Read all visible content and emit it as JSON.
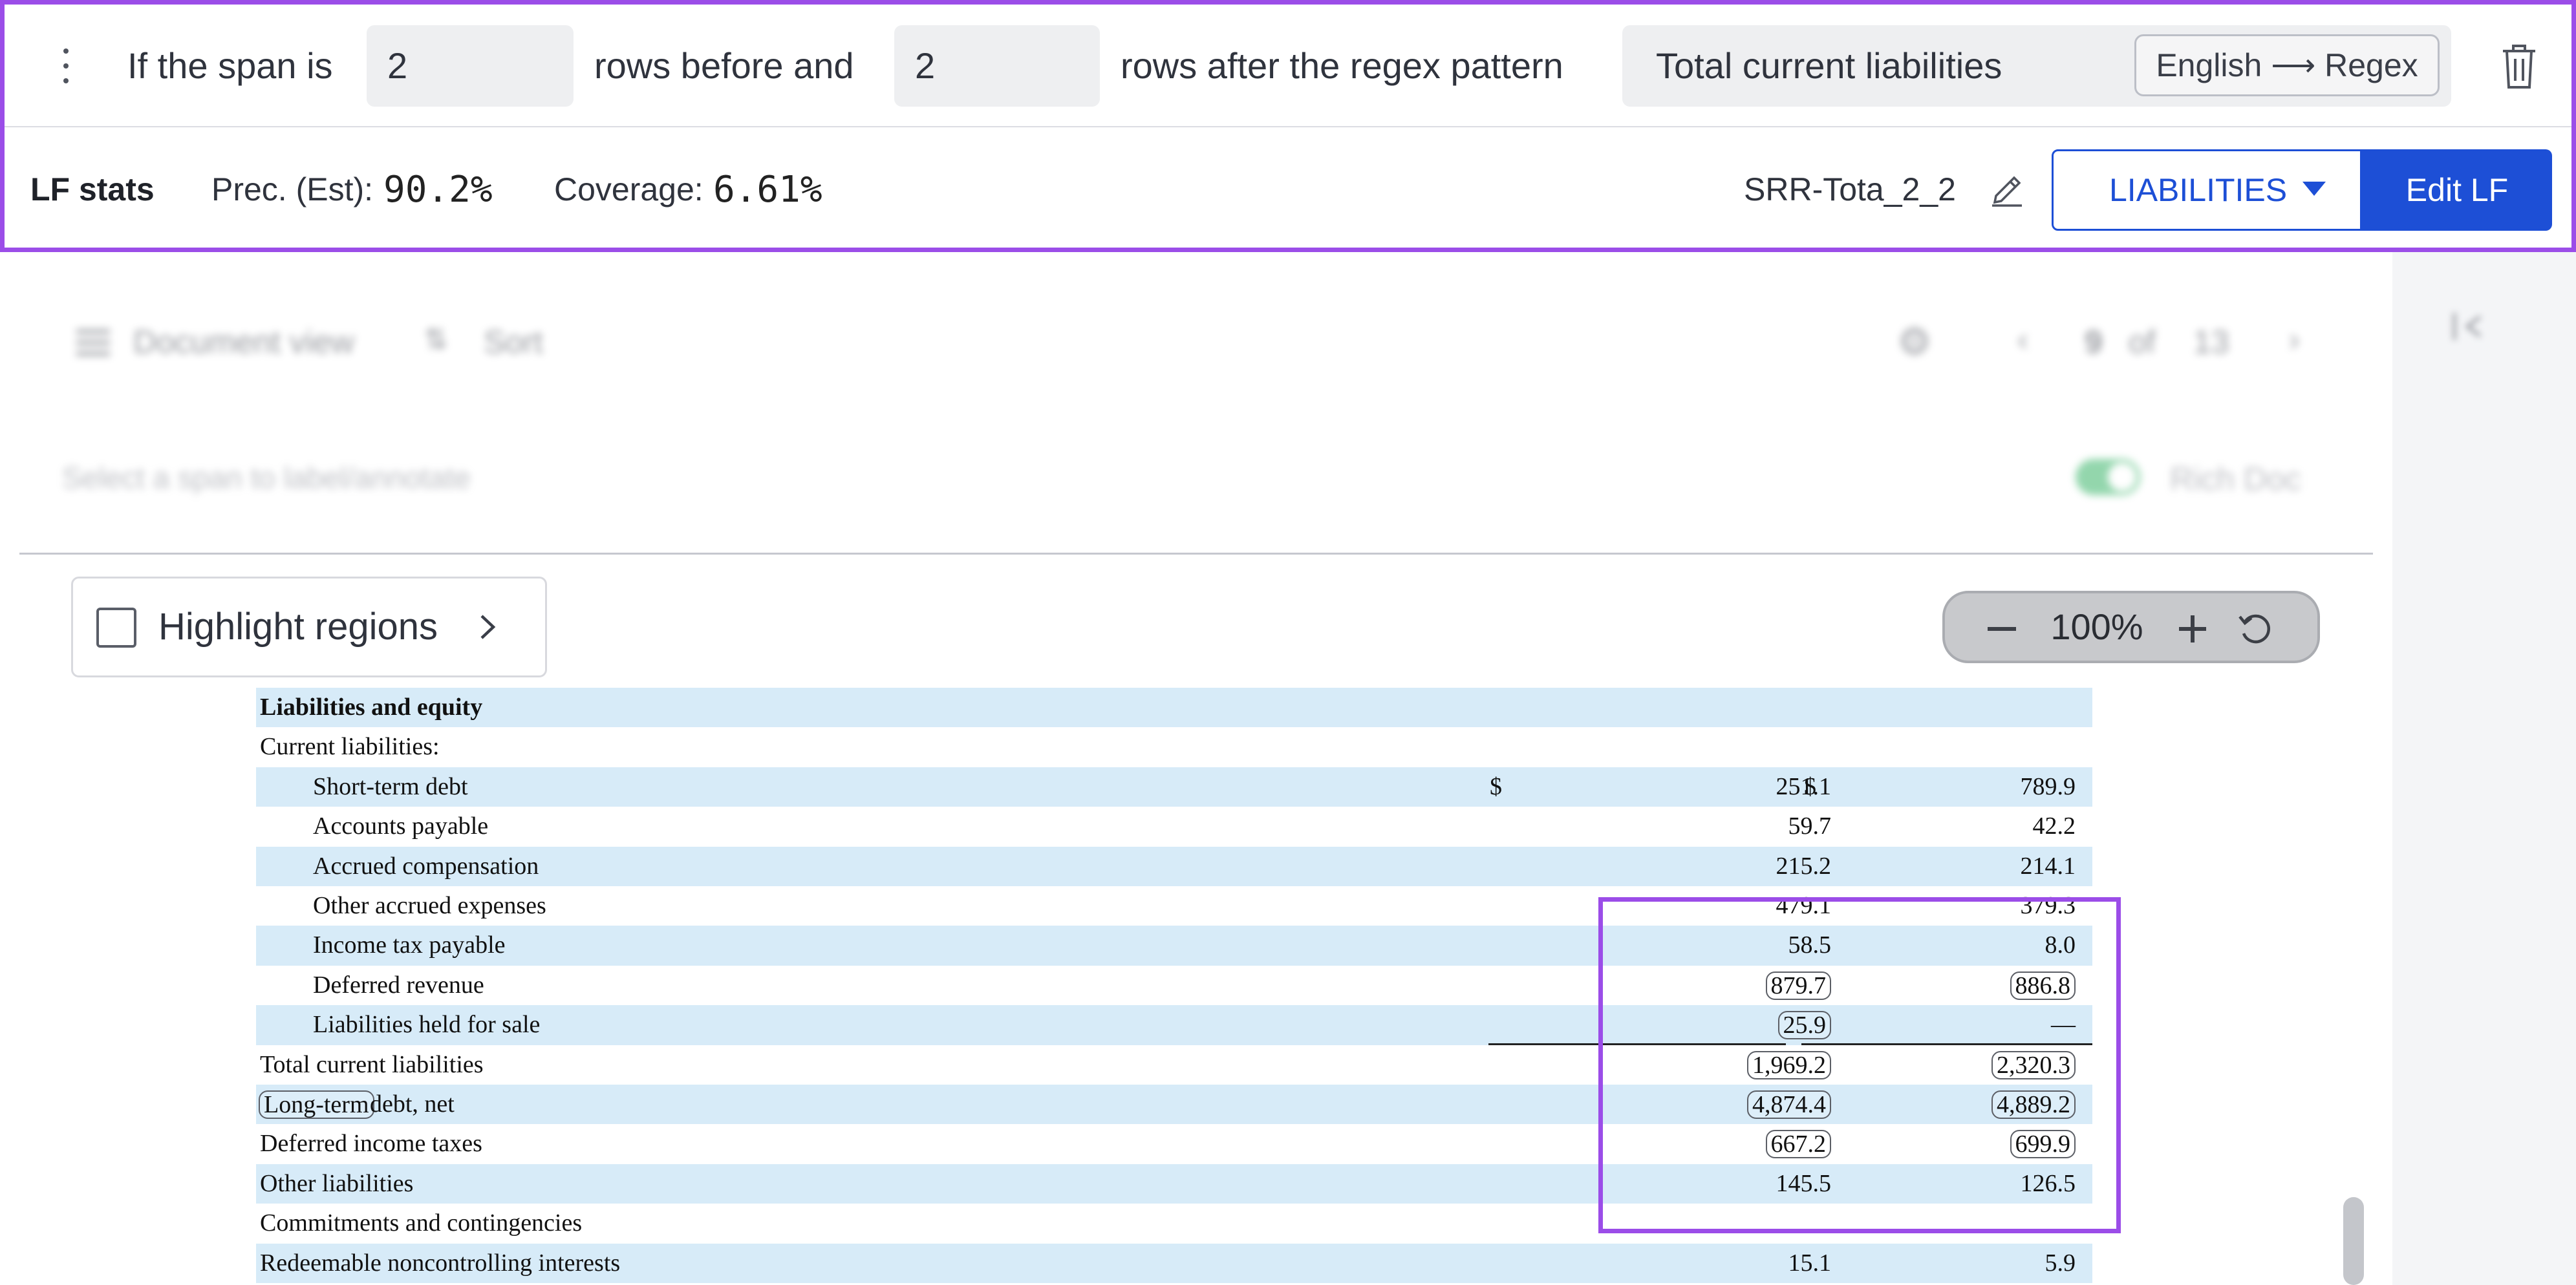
{
  "lf_builder": {
    "prefix_text": "If the span is",
    "rows_before_value": "2",
    "middle_text": "rows before and",
    "rows_after_value": "2",
    "suffix_text": "rows after the regex pattern",
    "pattern_value": "Total current liabilities",
    "mode_from": "English",
    "mode_arrow": "⟶",
    "mode_to": "Regex"
  },
  "lf_stats": {
    "title": "LF stats",
    "precision_label": "Prec. (Est):",
    "precision_value": "90.2%",
    "coverage_label": "Coverage:",
    "coverage_value": "6.61%",
    "lf_name": "SRR-Tota_2_2",
    "label_value": "LIABILITIES",
    "edit_button": "Edit LF"
  },
  "doc_toolbar": {
    "document_view": "Document view",
    "sort": "Sort",
    "page_current": "9",
    "page_of": "of",
    "page_total": "13",
    "select_hint": "Select a span to label/annotate",
    "rich_doc": "Rich Doc"
  },
  "viewer": {
    "highlight_regions": "Highlight regions",
    "zoom": "100%"
  },
  "table": {
    "rows": [
      {
        "label": "Liabilities and equity",
        "bold": true,
        "indent": 0,
        "col1": "",
        "col2": ""
      },
      {
        "label": "Current liabilities:",
        "indent": 0,
        "col1": "",
        "col2": ""
      },
      {
        "label": "Short-term debt",
        "indent": 1,
        "col1": "251.1",
        "col2": "789.9",
        "currency": "$"
      },
      {
        "label": "Accounts payable",
        "indent": 1,
        "col1": "59.7",
        "col2": "42.2"
      },
      {
        "label": "Accrued compensation",
        "indent": 1,
        "col1": "215.2",
        "col2": "214.1"
      },
      {
        "label": "Other accrued expenses",
        "indent": 1,
        "col1": "479.1",
        "col2": "379.3"
      },
      {
        "label": "Income tax payable",
        "indent": 1,
        "col1": "58.5",
        "col2": "8.0"
      },
      {
        "label": "Deferred revenue",
        "indent": 1,
        "col1": "879.7",
        "col2": "886.8"
      },
      {
        "label": "Liabilities held for sale",
        "indent": 1,
        "col1": "25.9",
        "col2": "—"
      },
      {
        "label": "Total current liabilities",
        "indent": 0,
        "col1": "1,969.2",
        "col2": "2,320.3"
      },
      {
        "label_a": "Long-term",
        "label_b": " debt, net",
        "indent": 0,
        "col1": "4,874.4",
        "col2": "4,889.2"
      },
      {
        "label": "Deferred income taxes",
        "indent": 0,
        "col1": "667.2",
        "col2": "699.9"
      },
      {
        "label": "Other liabilities",
        "indent": 0,
        "col1": "145.5",
        "col2": "126.5"
      },
      {
        "label": "Commitments and contingencies",
        "indent": 0,
        "col1": "",
        "col2": ""
      },
      {
        "label": "Redeemable noncontrolling interests",
        "indent": 0,
        "col1": "15.1",
        "col2": "5.9"
      }
    ]
  },
  "colors": {
    "accent_purple": "#9b4de8",
    "primary_blue": "#1d4fd6",
    "row_band": "#d7ebf8"
  }
}
